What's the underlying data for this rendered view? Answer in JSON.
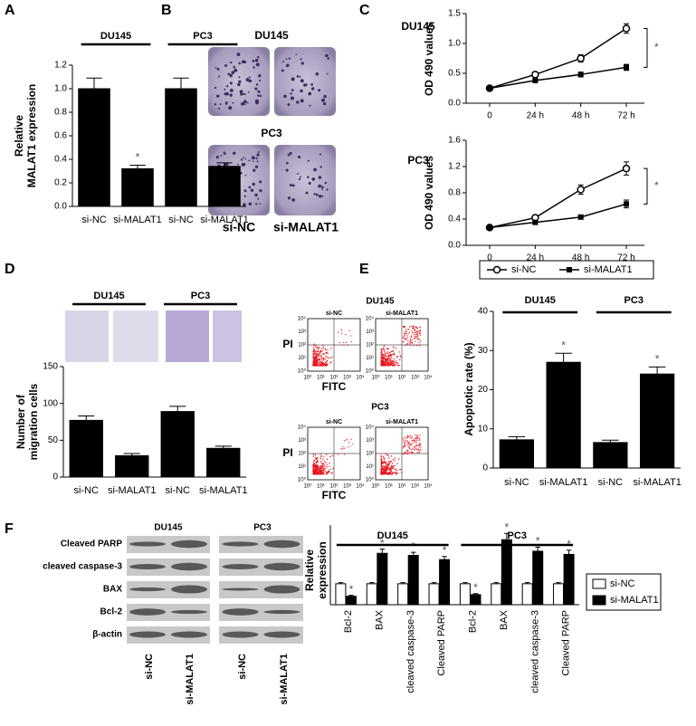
{
  "panels": [
    "A",
    "B",
    "C",
    "D",
    "E",
    "F"
  ],
  "colony": {
    "groups": [
      "DU145",
      "PC3"
    ],
    "labels": [
      "si-NC",
      "si-MALAT1"
    ]
  },
  "flow": {
    "groups": [
      "DU145",
      "PC3"
    ],
    "labels": [
      "si-NC",
      "si-MALAT1"
    ],
    "xlabel": "FITC",
    "ylabel": "PI",
    "ticks": [
      "10⁰",
      "10¹",
      "10²",
      "10³",
      "10⁴"
    ]
  },
  "blot": {
    "rows": [
      "Cleaved PARP",
      "cleaved caspase-3",
      "BAX",
      "Bcl-2",
      "β-actin"
    ],
    "groups": [
      "DU145",
      "PC3"
    ],
    "labels": [
      "si-NC",
      "si-MALAT1"
    ]
  },
  "chart_data": [
    {
      "type": "bar",
      "ylabel": [
        "Relative",
        "MALAT1 expression"
      ],
      "categories": [
        "si-NC",
        "si-MALAT1",
        "si-NC",
        "si-MALAT1"
      ],
      "groups": [
        "DU145",
        "PC3"
      ],
      "values": [
        1.0,
        0.32,
        1.0,
        0.34
      ],
      "errors": [
        0.09,
        0.03,
        0.09,
        0.03
      ],
      "annotations": [
        null,
        "*",
        null,
        "*"
      ],
      "color": "#000000",
      "ylim": [
        0,
        1.2
      ],
      "yticks": [
        {
          "value": 0,
          "label": "0.0"
        },
        0.2,
        0.4,
        0.6,
        0.8,
        {
          "value": 1,
          "label": "1.0"
        },
        1.2
      ]
    },
    {
      "type": "line",
      "title": "DU145",
      "ylabel": "OD 490 values",
      "categories": [
        "0",
        "24 h",
        "48 h",
        "72 h"
      ],
      "series": [
        {
          "name": "si-NC",
          "marker": "o",
          "color": "#000000",
          "values": [
            0.25,
            0.48,
            0.75,
            1.25
          ],
          "errors": [
            0.02,
            0.04,
            0.06,
            0.08
          ]
        },
        {
          "name": "si-MALAT1",
          "marker": "s",
          "color": "#000000",
          "values": [
            0.25,
            0.38,
            0.48,
            0.6
          ],
          "errors": [
            0.02,
            0.03,
            0.04,
            0.05
          ]
        }
      ],
      "annotation": "*",
      "ylim": [
        0,
        1.5
      ],
      "yticks": [
        {
          "value": 0,
          "label": "0.0"
        },
        0.5,
        {
          "value": 1,
          "label": "1.0"
        },
        1.5
      ]
    },
    {
      "type": "line",
      "title": "PC3",
      "ylabel": "OD 490 values",
      "categories": [
        "0",
        "24 h",
        "48 h",
        "72 h"
      ],
      "series": [
        {
          "name": "si-NC",
          "marker": "o",
          "color": "#000000",
          "values": [
            0.27,
            0.42,
            0.85,
            1.17
          ],
          "errors": [
            0.02,
            0.03,
            0.07,
            0.1
          ]
        },
        {
          "name": "si-MALAT1",
          "marker": "s",
          "color": "#000000",
          "values": [
            0.27,
            0.35,
            0.43,
            0.63
          ],
          "errors": [
            0.02,
            0.03,
            0.03,
            0.06
          ]
        }
      ],
      "annotation": "*",
      "legend": "bottom",
      "ylim": [
        0,
        1.6
      ],
      "yticks": [
        {
          "value": 0,
          "label": "0.0"
        },
        0.4,
        0.8,
        1.2,
        1.6
      ]
    },
    {
      "type": "bar",
      "ylabel": [
        "Number of",
        "migration cells"
      ],
      "categories": [
        "si-NC",
        "si-MALAT1",
        "si-NC",
        "si-MALAT1"
      ],
      "groups": [
        "DU145",
        "PC3"
      ],
      "values": [
        77,
        29,
        89,
        39
      ],
      "errors": [
        6,
        3,
        7,
        3
      ],
      "color": "#000000",
      "ylim": [
        0,
        150
      ],
      "yticks": [
        0,
        50,
        100,
        150
      ]
    },
    {
      "type": "bar",
      "ylabel": "Apoptotic rate (%)",
      "categories": [
        "si-NC",
        "si-MALAT1",
        "si-NC",
        "si-MALAT1"
      ],
      "groups": [
        "DU145",
        "PC3"
      ],
      "values": [
        7.2,
        27,
        6.5,
        24
      ],
      "errors": [
        0.8,
        2.3,
        0.6,
        1.8
      ],
      "annotations": [
        null,
        "*",
        null,
        "*"
      ],
      "color": "#000000",
      "ylim": [
        0,
        40
      ],
      "yticks": [
        0,
        10,
        20,
        30,
        40
      ]
    },
    {
      "type": "bar",
      "ylabel": [
        "Relative",
        "expression"
      ],
      "categories": [
        "Bcl-2",
        "BAX",
        "cleaved caspase-3",
        "Cleaved PARP",
        "Bcl-2",
        "BAX",
        "cleaved caspase-3",
        "Cleaved PARP"
      ],
      "groups": [
        "DU145",
        "PC3"
      ],
      "series": [
        {
          "name": "si-NC",
          "color": "#ffffff",
          "values": [
            1,
            1,
            1,
            1,
            1,
            1,
            1,
            1
          ],
          "errors": [
            0.05,
            0.05,
            0.05,
            0.05,
            0.05,
            0.05,
            0.05,
            0.05
          ]
        },
        {
          "name": "si-MALAT1",
          "color": "#000000",
          "values": [
            0.4,
            2.45,
            2.35,
            2.15,
            0.48,
            3.1,
            2.55,
            2.4
          ],
          "errors": [
            0.05,
            0.2,
            0.15,
            0.15,
            0.05,
            0.3,
            0.2,
            0.2
          ],
          "annotations": [
            "*",
            "*",
            "*",
            "*",
            "*",
            "*",
            "*",
            "*"
          ]
        }
      ],
      "legend": "right",
      "ylim": [
        0,
        3.8
      ]
    }
  ]
}
